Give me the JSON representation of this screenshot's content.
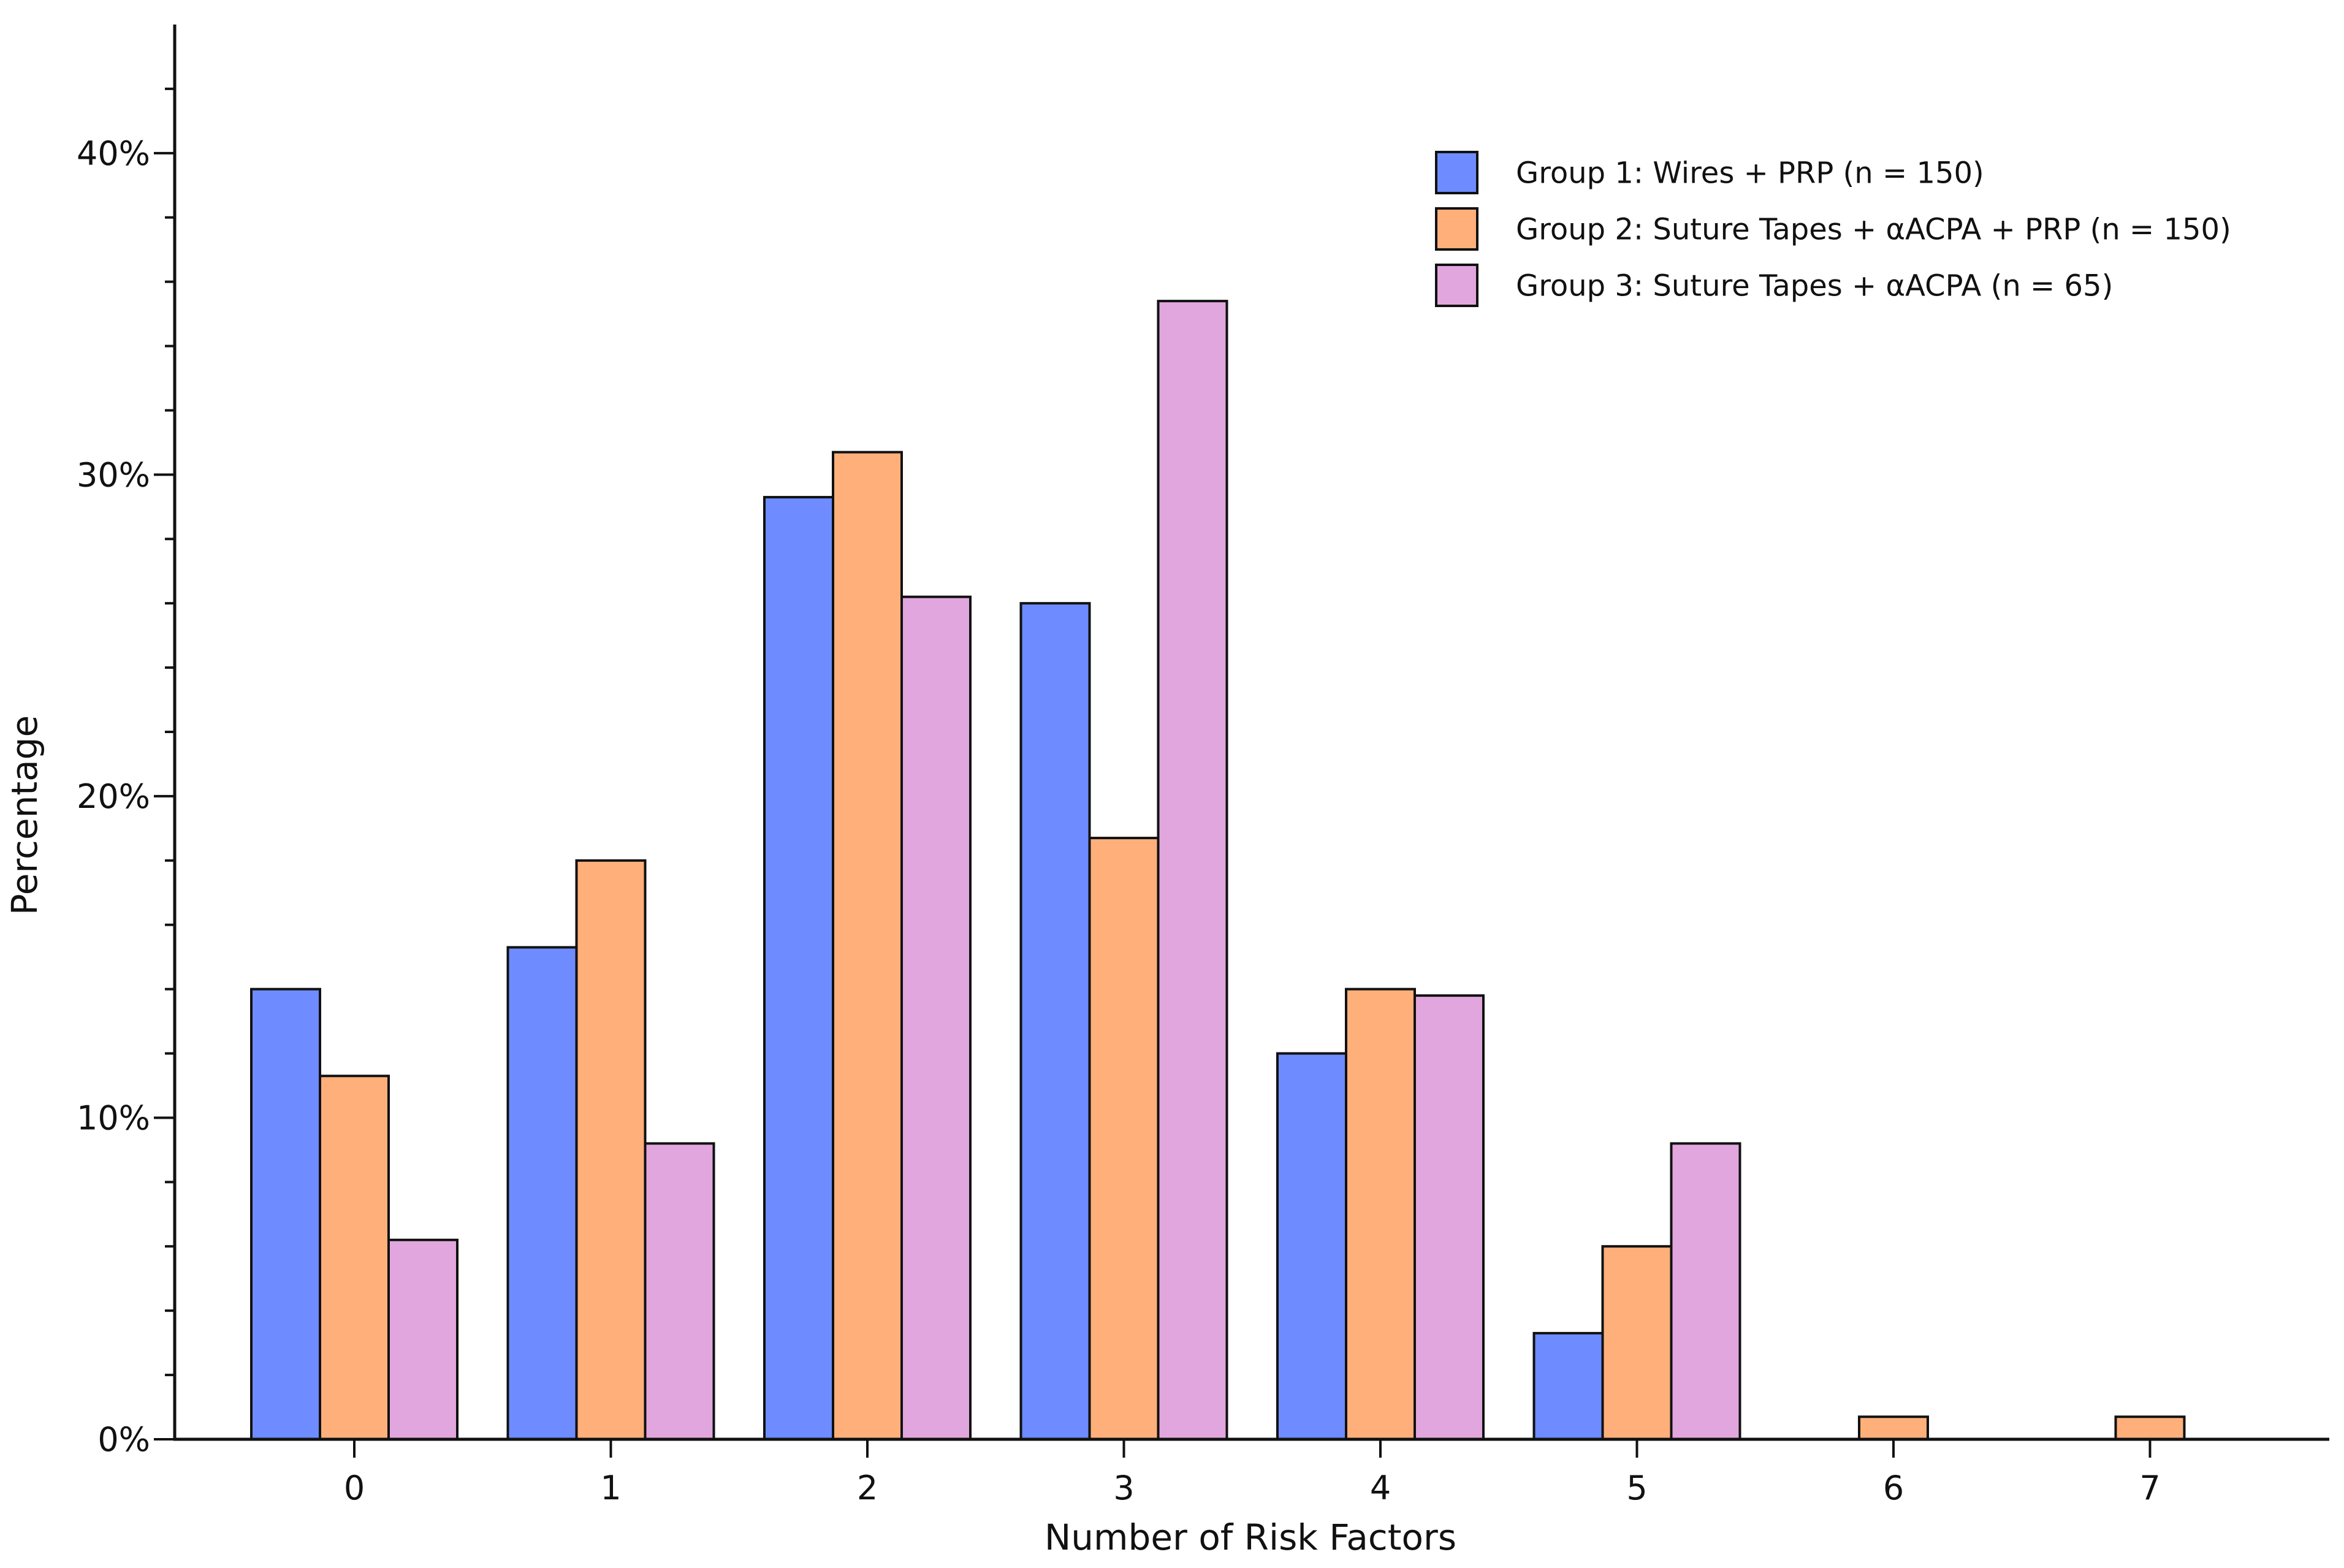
{
  "chart_data": {
    "type": "bar",
    "xlabel": "Number of Risk Factors",
    "ylabel": "Percentage",
    "categories": [
      "0",
      "1",
      "2",
      "3",
      "4",
      "5",
      "6",
      "7"
    ],
    "ylim": [
      0,
      44
    ],
    "yticks": [
      0,
      10,
      20,
      30,
      40
    ],
    "ytick_labels": [
      "0%",
      "10%",
      "20%",
      "30%",
      "40%"
    ],
    "grid": false,
    "legend_position": "top-right",
    "series": [
      {
        "name": "Group 1: Wires + PRP (n = 150)",
        "color": "#6e8cff",
        "values": [
          14.0,
          15.3,
          29.3,
          26.0,
          12.0,
          3.3,
          0,
          0
        ]
      },
      {
        "name": "Group 2: Suture Tapes + αACPA + PRP (n = 150)",
        "color": "#ffb07a",
        "values": [
          11.3,
          18.0,
          30.7,
          18.7,
          14.0,
          6.0,
          0.7,
          0.7
        ]
      },
      {
        "name": "Group 3: Suture Tapes + αACPA (n = 65)",
        "color": "#e2a6de",
        "values": [
          6.2,
          9.2,
          26.2,
          35.4,
          13.8,
          9.2,
          0,
          0
        ]
      }
    ]
  }
}
